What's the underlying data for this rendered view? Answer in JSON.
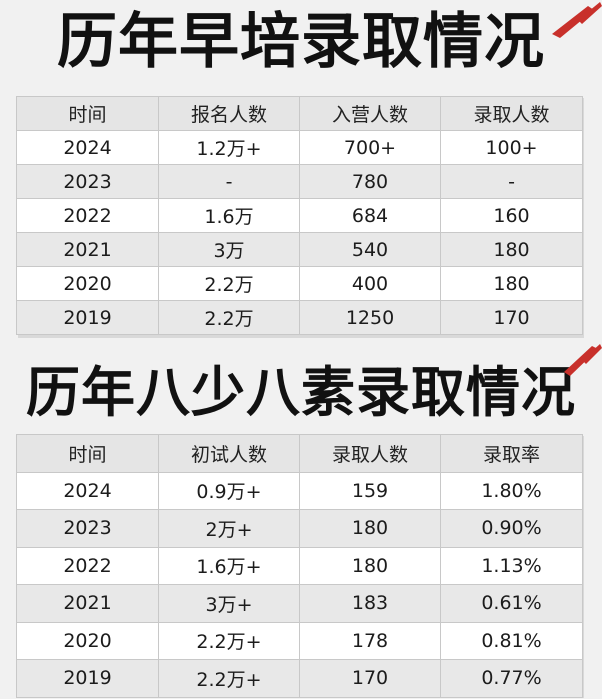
{
  "section1": {
    "title": "历年早培录取情况",
    "headers": [
      "时间",
      "报名人数",
      "入营人数",
      "录取人数"
    ],
    "rows": [
      [
        "2024",
        "1.2万+",
        "700+",
        "100+"
      ],
      [
        "2023",
        "-",
        "780",
        "-"
      ],
      [
        "2022",
        "1.6万",
        "684",
        "160"
      ],
      [
        "2021",
        "3万",
        "540",
        "180"
      ],
      [
        "2020",
        "2.2万",
        "400",
        "180"
      ],
      [
        "2019",
        "2.2万",
        "1250",
        "170"
      ]
    ]
  },
  "section2": {
    "title": "历年八少八素录取情况",
    "headers": [
      "时间",
      "初试人数",
      "录取人数",
      "录取率"
    ],
    "rows": [
      [
        "2024",
        "0.9万+",
        "159",
        "1.80%"
      ],
      [
        "2023",
        "2万+",
        "180",
        "0.90%"
      ],
      [
        "2022",
        "1.6万+",
        "180",
        "1.13%"
      ],
      [
        "2021",
        "3万+",
        "183",
        "0.61%"
      ],
      [
        "2020",
        "2.2万+",
        "178",
        "0.81%"
      ],
      [
        "2019",
        "2.2万+",
        "170",
        "0.77%"
      ]
    ]
  },
  "colors": {
    "accent_red": "#c8302b",
    "header_bg": "#e5e5e5",
    "stripe_bg": "#e8e8e8"
  }
}
